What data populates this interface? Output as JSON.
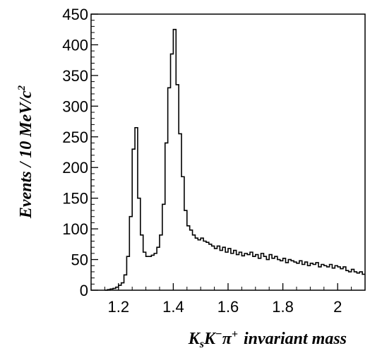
{
  "chart_data": {
    "type": "histogram",
    "title": "",
    "xlabel_parts": {
      "k": "K",
      "s": "s",
      "k2": "K",
      "minus": "−",
      "pi": "π",
      "plus": "+",
      "rest": "invariant mass"
    },
    "ylabel_parts": {
      "main": "Events / 10 MeV/c",
      "sup": "2"
    },
    "xlim": [
      1.1,
      2.1
    ],
    "ylim": [
      0,
      450
    ],
    "x_ticks": [
      1.2,
      1.4,
      1.6,
      1.8,
      2.0
    ],
    "x_tick_labels": [
      "1.2",
      "1.4",
      "1.6",
      "1.8",
      "2"
    ],
    "y_ticks": [
      0,
      50,
      100,
      150,
      200,
      250,
      300,
      350,
      400,
      450
    ],
    "y_tick_labels": [
      "0",
      "50",
      "100",
      "150",
      "200",
      "250",
      "300",
      "350",
      "400",
      "450"
    ],
    "grid": false,
    "bin_width": 0.01,
    "bin_start": 1.15,
    "bin_counts": [
      0,
      1,
      2,
      3,
      5,
      8,
      12,
      25,
      55,
      120,
      230,
      265,
      150,
      90,
      62,
      55,
      55,
      57,
      60,
      70,
      90,
      140,
      240,
      330,
      385,
      425,
      335,
      255,
      185,
      130,
      105,
      98,
      90,
      85,
      82,
      85,
      80,
      78,
      75,
      72,
      68,
      72,
      65,
      70,
      62,
      68,
      60,
      65,
      58,
      62,
      56,
      60,
      58,
      62,
      55,
      58,
      52,
      60,
      55,
      50,
      58,
      52,
      55,
      50,
      48,
      52,
      45,
      50,
      48,
      46,
      44,
      48,
      42,
      46,
      40,
      44,
      42,
      45,
      38,
      42,
      40,
      38,
      42,
      36,
      40,
      38,
      35,
      38,
      32,
      30,
      34,
      30,
      28,
      30,
      26
    ]
  }
}
